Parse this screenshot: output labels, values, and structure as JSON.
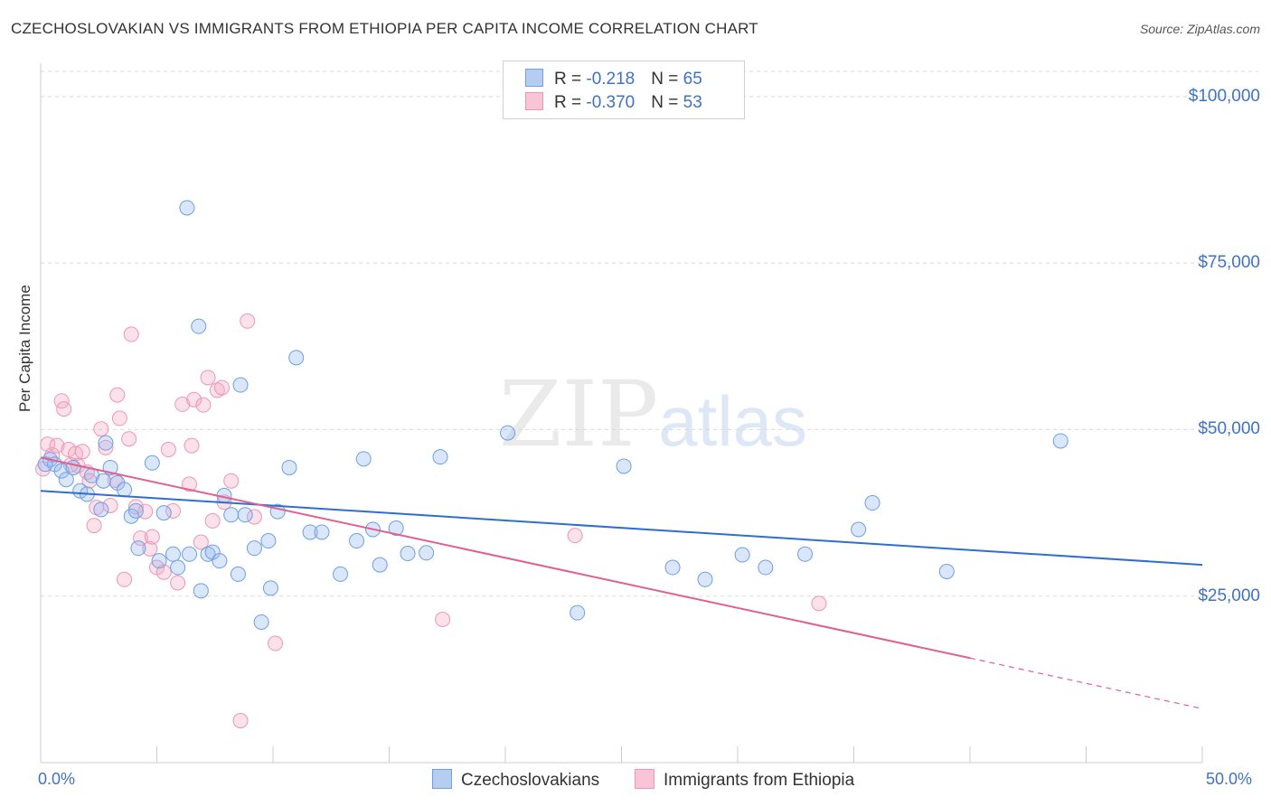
{
  "title": "CZECHOSLOVAKIAN VS IMMIGRANTS FROM ETHIOPIA PER CAPITA INCOME CORRELATION CHART",
  "source": "Source: ZipAtlas.com",
  "watermark": {
    "zip": "ZIP",
    "atlas": "atlas"
  },
  "legend": {
    "rows": [
      {
        "r_label": "R = ",
        "r_value": "-0.218",
        "n_label": "N = ",
        "n_value": "65"
      },
      {
        "r_label": "R = ",
        "r_value": "-0.370",
        "n_label": "N = ",
        "n_value": "53"
      }
    ]
  },
  "chart_data": {
    "type": "scatter",
    "title": "CZECHOSLOVAKIAN VS IMMIGRANTS FROM ETHIOPIA PER CAPITA INCOME CORRELATION CHART",
    "xlabel": "",
    "ylabel": "Per Capita Income",
    "xlim": [
      0,
      50
    ],
    "ylim": [
      0,
      105000
    ],
    "x_tick_labels": [
      "0.0%",
      "50.0%"
    ],
    "y_ticks": [
      25000,
      50000,
      75000,
      100000
    ],
    "y_tick_labels": [
      "$25,000",
      "$50,000",
      "$75,000",
      "$100,000"
    ],
    "grid": true,
    "colors": {
      "czech": "#6d9ee6",
      "ethiopia": "#ef95b3",
      "czech_line": "#2e6fce",
      "ethiopia_line": "#e0608e"
    },
    "series": [
      {
        "name": "Czechoslovakians",
        "r": -0.218,
        "n": 65,
        "trend": {
          "x0": 0,
          "y0": 40800,
          "x1": 50,
          "y1": 29700
        },
        "points": [
          [
            0.4,
            45500
          ],
          [
            0.6,
            44800
          ],
          [
            0.9,
            43800
          ],
          [
            1.1,
            42500
          ],
          [
            1.4,
            44300
          ],
          [
            1.7,
            40800
          ],
          [
            2.0,
            40300
          ],
          [
            2.2,
            43100
          ],
          [
            2.6,
            38000
          ],
          [
            2.7,
            42300
          ],
          [
            2.8,
            48000
          ],
          [
            3.0,
            44300
          ],
          [
            3.3,
            42000
          ],
          [
            3.6,
            41000
          ],
          [
            3.9,
            37000
          ],
          [
            4.1,
            37800
          ],
          [
            4.2,
            32200
          ],
          [
            4.8,
            45000
          ],
          [
            5.1,
            30300
          ],
          [
            5.3,
            37500
          ],
          [
            5.7,
            31300
          ],
          [
            5.9,
            29300
          ],
          [
            6.3,
            83300
          ],
          [
            6.4,
            31300
          ],
          [
            6.8,
            65500
          ],
          [
            6.9,
            25800
          ],
          [
            7.2,
            31300
          ],
          [
            7.4,
            31600
          ],
          [
            7.7,
            30300
          ],
          [
            7.9,
            40100
          ],
          [
            8.2,
            37200
          ],
          [
            8.5,
            28300
          ],
          [
            8.6,
            56700
          ],
          [
            8.8,
            37200
          ],
          [
            9.2,
            32200
          ],
          [
            9.5,
            21100
          ],
          [
            9.8,
            33300
          ],
          [
            9.9,
            26200
          ],
          [
            10.2,
            37700
          ],
          [
            10.7,
            44300
          ],
          [
            11.0,
            60800
          ],
          [
            11.6,
            34600
          ],
          [
            12.1,
            34600
          ],
          [
            12.9,
            28300
          ],
          [
            13.6,
            33300
          ],
          [
            13.9,
            45600
          ],
          [
            14.3,
            35000
          ],
          [
            14.6,
            29700
          ],
          [
            15.3,
            35200
          ],
          [
            15.8,
            31400
          ],
          [
            16.6,
            31500
          ],
          [
            17.2,
            45900
          ],
          [
            20.1,
            49500
          ],
          [
            23.1,
            22500
          ],
          [
            25.1,
            44500
          ],
          [
            27.2,
            29300
          ],
          [
            28.6,
            27500
          ],
          [
            30.2,
            31200
          ],
          [
            31.2,
            29300
          ],
          [
            32.9,
            31300
          ],
          [
            35.2,
            35000
          ],
          [
            35.8,
            39000
          ],
          [
            39.0,
            28700
          ],
          [
            43.9,
            48300
          ],
          [
            0.2,
            44800
          ]
        ]
      },
      {
        "name": "Immigrants from Ethiopia",
        "r": -0.37,
        "n": 53,
        "trend": {
          "x0": 0,
          "y0": 45800,
          "x1": 40,
          "y1": 15700,
          "dash_to_x": 50,
          "dash_to_y": 8100
        },
        "points": [
          [
            0.3,
            47800
          ],
          [
            0.5,
            46200
          ],
          [
            0.7,
            47600
          ],
          [
            0.9,
            54300
          ],
          [
            1.0,
            53100
          ],
          [
            1.2,
            47000
          ],
          [
            1.5,
            46400
          ],
          [
            1.6,
            44600
          ],
          [
            1.8,
            46700
          ],
          [
            2.0,
            43600
          ],
          [
            2.1,
            42300
          ],
          [
            2.3,
            35600
          ],
          [
            2.4,
            38300
          ],
          [
            2.6,
            50100
          ],
          [
            2.8,
            47300
          ],
          [
            3.0,
            38600
          ],
          [
            3.2,
            42400
          ],
          [
            3.3,
            55200
          ],
          [
            3.4,
            51700
          ],
          [
            3.6,
            27500
          ],
          [
            3.8,
            48600
          ],
          [
            3.9,
            64300
          ],
          [
            4.1,
            38400
          ],
          [
            4.3,
            33700
          ],
          [
            4.5,
            37700
          ],
          [
            4.7,
            32100
          ],
          [
            4.8,
            33900
          ],
          [
            5.0,
            29300
          ],
          [
            5.3,
            28600
          ],
          [
            5.5,
            47000
          ],
          [
            5.7,
            37800
          ],
          [
            5.9,
            27000
          ],
          [
            6.1,
            53800
          ],
          [
            6.4,
            41800
          ],
          [
            6.5,
            47600
          ],
          [
            6.6,
            54500
          ],
          [
            6.9,
            33100
          ],
          [
            7.0,
            53700
          ],
          [
            7.2,
            57800
          ],
          [
            7.4,
            36300
          ],
          [
            7.6,
            55900
          ],
          [
            7.8,
            56300
          ],
          [
            7.9,
            39100
          ],
          [
            8.2,
            42300
          ],
          [
            8.6,
            6300
          ],
          [
            8.9,
            66300
          ],
          [
            9.2,
            36900
          ],
          [
            10.1,
            17900
          ],
          [
            17.3,
            21500
          ],
          [
            23.0,
            34100
          ],
          [
            33.5,
            23900
          ],
          [
            0.1,
            44100
          ],
          [
            1.3,
            44700
          ]
        ]
      }
    ]
  },
  "bottom_legend": [
    "Czechoslovakians",
    "Immigrants from Ethiopia"
  ]
}
